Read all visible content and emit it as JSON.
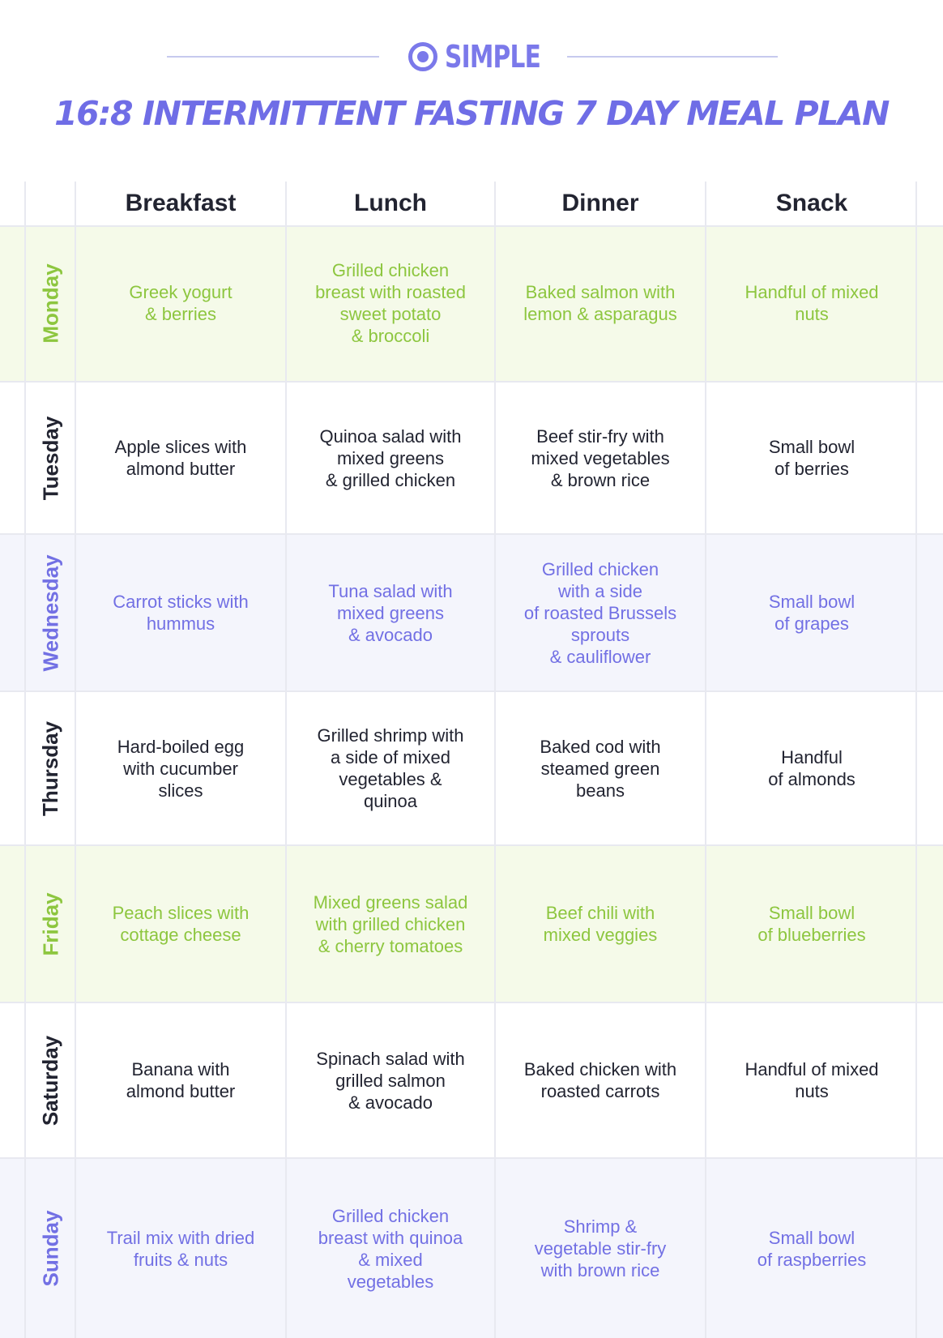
{
  "brand": {
    "name": "SIMPLE",
    "icon": "target-circle-icon",
    "color": "#7b79ea"
  },
  "title": "16:8 INTERMITTENT FASTING 7 DAY MEAL PLAN",
  "columns": [
    "Breakfast",
    "Lunch",
    "Dinner",
    "Snack"
  ],
  "colors": {
    "green_text": "#8dc63f",
    "green_bg": "#f5fae9",
    "purple_text": "#7270e4",
    "purple_bg": "#f4f5fc",
    "dark_text": "#222431",
    "white_bg": "#ffffff"
  },
  "days": [
    {
      "day": "Monday",
      "theme": "green",
      "meals": [
        "Greek yogurt\n& berries",
        "Grilled chicken\nbreast with roasted\nsweet potato\n& broccoli",
        "Baked salmon with\nlemon & asparagus",
        "Handful of mixed\nnuts"
      ]
    },
    {
      "day": "Tuesday",
      "theme": "dark",
      "meals": [
        "Apple slices with\nalmond butter",
        "Quinoa salad with\nmixed greens\n& grilled chicken",
        "Beef stir-fry with\nmixed vegetables\n& brown rice",
        "Small bowl\nof berries"
      ]
    },
    {
      "day": "Wednesday",
      "theme": "purple",
      "meals": [
        "Carrot sticks with\nhummus",
        "Tuna salad with\nmixed greens\n& avocado",
        "Grilled chicken\nwith a side\nof roasted Brussels\nsprouts\n& cauliflower",
        "Small bowl\nof grapes"
      ]
    },
    {
      "day": "Thursday",
      "theme": "dark",
      "meals": [
        "Hard-boiled egg\nwith cucumber\nslices",
        "Grilled shrimp with\na side of mixed\nvegetables &\nquinoa",
        "Baked cod with\nsteamed green\nbeans",
        "Handful\nof almonds"
      ]
    },
    {
      "day": "Friday",
      "theme": "green",
      "meals": [
        "Peach slices with\ncottage cheese",
        "Mixed greens salad\nwith grilled chicken\n& cherry tomatoes",
        "Beef chili with\nmixed veggies",
        "Small bowl\nof blueberries"
      ]
    },
    {
      "day": "Saturday",
      "theme": "dark",
      "meals": [
        "Banana with\nalmond butter",
        "Spinach salad with\ngrilled salmon\n& avocado",
        "Baked chicken with\nroasted carrots",
        "Handful of mixed\nnuts"
      ]
    },
    {
      "day": "Sunday",
      "theme": "purple",
      "meals": [
        "Trail mix with dried\nfruits & nuts",
        "Grilled chicken\nbreast with quinoa\n& mixed\nvegetables",
        "Shrimp &\nvegetable stir-fry\nwith brown rice",
        "Small bowl\nof raspberries"
      ]
    }
  ]
}
